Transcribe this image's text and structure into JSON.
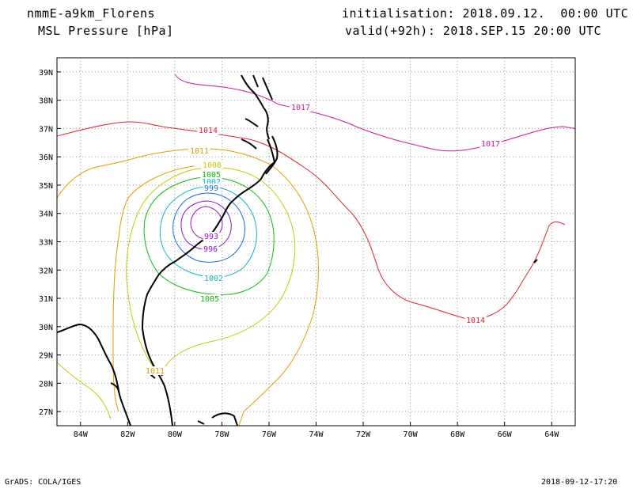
{
  "header": {
    "model": "nmmE-a9km_Florens",
    "field": "MSL Pressure [hPa]",
    "init": "initialisation: 2018.09.12.  00:00 UTC",
    "valid": "valid(+92h): 2018.SEP.15 20:00 UTC"
  },
  "footer": {
    "software": "GrADS: COLA/IGES",
    "timestamp": "2018-09-12-17:20"
  },
  "map": {
    "lon_range": [
      -85.0,
      -63.0
    ],
    "lat_range": [
      26.5,
      39.5
    ],
    "lon_ticks": [
      "84W",
      "82W",
      "80W",
      "78W",
      "76W",
      "74W",
      "72W",
      "70W",
      "68W",
      "66W",
      "64W"
    ],
    "lat_ticks": [
      "39N",
      "38N",
      "37N",
      "36N",
      "35N",
      "34N",
      "33N",
      "32N",
      "31N",
      "30N",
      "29N",
      "28N",
      "27N"
    ],
    "grid": "dotted",
    "contour_labels": {
      "c1017a": "1017",
      "c1017b": "1017",
      "c1014a": "1014",
      "c1014b": "1014",
      "c1011a": "1011",
      "c1011b": "1011",
      "c1008": "1008",
      "c1005a": "1005",
      "c1005b": "1005",
      "c1002a": "1002",
      "c1002b": "1002",
      "c999": "999",
      "c996": "996",
      "c993": "993"
    },
    "colors": {
      "c1017": "#d4139f",
      "c1014": "#dc2233",
      "c1011": "#e0a000",
      "c1008": "#c8c800",
      "c1005": "#12b812",
      "c1002": "#10b4c0",
      "c999": "#1a6ee0",
      "c996": "#8a14d2",
      "c993": "#a012c8",
      "coast": "#000000"
    }
  }
}
